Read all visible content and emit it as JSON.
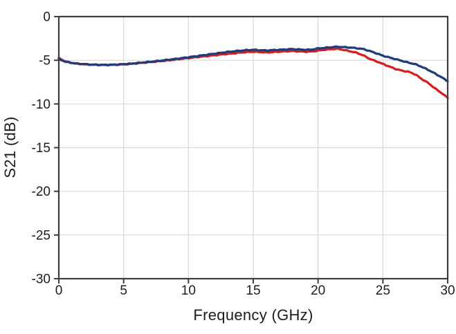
{
  "chart_data": {
    "type": "line",
    "title": "",
    "xlabel": "Frequency (GHz)",
    "ylabel": "S21 (dB)",
    "xlim": [
      0,
      30
    ],
    "ylim": [
      -30,
      0
    ],
    "xticks": [
      0,
      5,
      10,
      15,
      20,
      25,
      30
    ],
    "yticks": [
      0,
      -5,
      -10,
      -15,
      -20,
      -25,
      -30
    ],
    "xtick_labels": [
      "0",
      "5",
      "10",
      "15",
      "20",
      "25",
      "30"
    ],
    "ytick_labels": [
      "0",
      "-5",
      "-10",
      "-15",
      "-20",
      "-25",
      "-30"
    ],
    "grid": true,
    "legend": "none",
    "x_ghz": [
      0,
      0.5,
      1,
      1.5,
      2,
      2.5,
      3,
      3.5,
      4,
      4.5,
      5,
      5.5,
      6,
      6.5,
      7,
      7.5,
      8,
      8.5,
      9,
      9.5,
      10,
      10.5,
      11,
      11.5,
      12,
      12.5,
      13,
      13.5,
      14,
      14.5,
      15,
      15.5,
      16,
      16.5,
      17,
      17.5,
      18,
      18.5,
      19,
      19.5,
      20,
      20.5,
      21,
      21.5,
      22,
      22.5,
      23,
      23.5,
      24,
      24.5,
      25,
      25.5,
      26,
      26.5,
      27,
      27.5,
      28,
      28.5,
      29,
      29.5,
      30
    ],
    "series": [
      {
        "name": "red-trace",
        "color": "#d81f1f",
        "values": [
          -4.75,
          -5.15,
          -5.3,
          -5.4,
          -5.45,
          -5.5,
          -5.52,
          -5.53,
          -5.52,
          -5.5,
          -5.46,
          -5.42,
          -5.35,
          -5.28,
          -5.22,
          -5.15,
          -5.08,
          -5.0,
          -4.92,
          -4.83,
          -4.75,
          -4.66,
          -4.58,
          -4.5,
          -4.43,
          -4.35,
          -4.27,
          -4.2,
          -4.12,
          -4.06,
          -4.02,
          -4.06,
          -4.1,
          -4.06,
          -4.02,
          -3.98,
          -3.94,
          -3.98,
          -4.02,
          -4.0,
          -3.9,
          -3.8,
          -3.72,
          -3.68,
          -3.82,
          -3.98,
          -4.15,
          -4.45,
          -4.85,
          -5.12,
          -5.42,
          -5.72,
          -6.0,
          -6.2,
          -6.32,
          -6.62,
          -7.15,
          -7.6,
          -8.2,
          -8.72,
          -9.3
        ]
      },
      {
        "name": "blue-trace",
        "color": "#1f3d7c",
        "values": [
          -4.85,
          -5.15,
          -5.3,
          -5.4,
          -5.45,
          -5.5,
          -5.52,
          -5.53,
          -5.52,
          -5.5,
          -5.45,
          -5.4,
          -5.32,
          -5.25,
          -5.18,
          -5.1,
          -5.02,
          -4.93,
          -4.85,
          -4.75,
          -4.65,
          -4.55,
          -4.45,
          -4.35,
          -4.25,
          -4.15,
          -4.05,
          -3.97,
          -3.9,
          -3.84,
          -3.8,
          -3.85,
          -3.88,
          -3.84,
          -3.8,
          -3.76,
          -3.72,
          -3.76,
          -3.8,
          -3.78,
          -3.65,
          -3.58,
          -3.5,
          -3.45,
          -3.5,
          -3.55,
          -3.62,
          -3.72,
          -3.95,
          -4.2,
          -4.48,
          -4.68,
          -4.88,
          -5.08,
          -5.28,
          -5.45,
          -5.75,
          -6.1,
          -6.5,
          -6.92,
          -7.4
        ]
      }
    ]
  },
  "colors": {
    "background": "#ffffff",
    "grid": "#d8d8d8",
    "frame": "#3d3d3d",
    "tick": "#3d3d3d",
    "text": "#1c1c1c"
  }
}
